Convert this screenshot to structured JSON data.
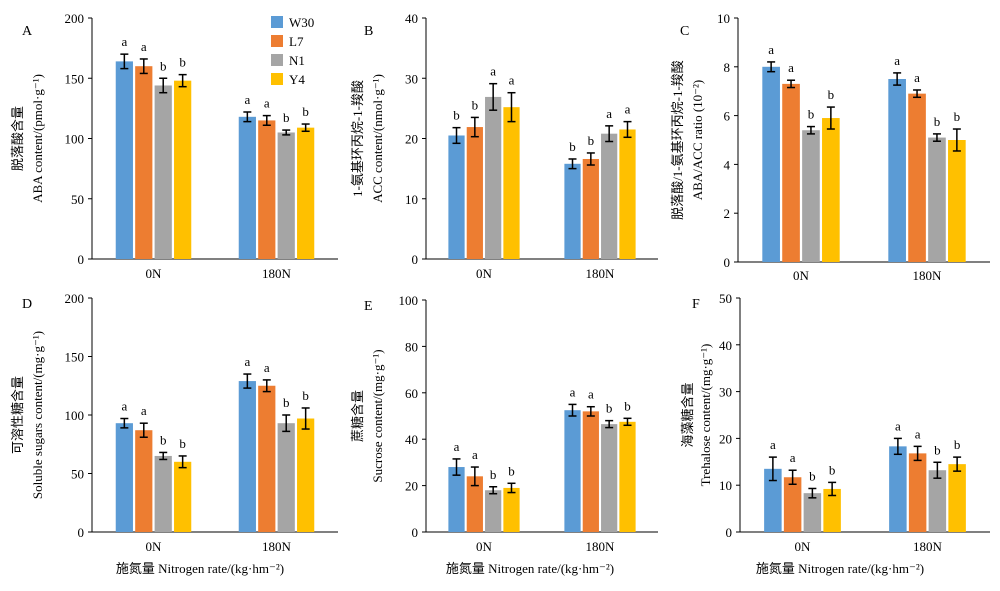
{
  "figure": {
    "series_colors": {
      "W30": "#5b9bd5",
      "L7": "#ed7d31",
      "N1": "#a5a5a5",
      "Y4": "#ffc000"
    },
    "xlabel": "施氮量 Nitrogen rate/(kg·hm⁻²)"
  },
  "chart_data": [
    {
      "panel": "A",
      "type": "bar",
      "categories": [
        "0N",
        "180N"
      ],
      "ylabel_cn": "脱落酸含量",
      "ylabel_en": "ABA content/(pmol·g⁻¹)",
      "xlabel": "",
      "ylim": [
        0,
        200
      ],
      "yticks": [
        0,
        50,
        100,
        150,
        200
      ],
      "legend": "top-center",
      "series": [
        {
          "name": "W30",
          "values": [
            164,
            118
          ],
          "errors": [
            6,
            4
          ],
          "letters": [
            "a",
            "a"
          ]
        },
        {
          "name": "L7",
          "values": [
            160,
            115
          ],
          "errors": [
            6,
            4
          ],
          "letters": [
            "a",
            "a"
          ]
        },
        {
          "name": "N1",
          "values": [
            144,
            105
          ],
          "errors": [
            6,
            2
          ],
          "letters": [
            "b",
            "b"
          ]
        },
        {
          "name": "Y4",
          "values": [
            148,
            109
          ],
          "errors": [
            5,
            3
          ],
          "letters": [
            "b",
            "b"
          ]
        }
      ]
    },
    {
      "panel": "B",
      "type": "bar",
      "categories": [
        "0N",
        "180N"
      ],
      "ylabel_cn": "1-氨基环丙烷-1-羧酸",
      "ylabel_en": "ACC content/(nmol·g⁻¹)",
      "xlabel": "",
      "ylim": [
        0,
        40
      ],
      "yticks": [
        0,
        10,
        20,
        30,
        40
      ],
      "series": [
        {
          "name": "W30",
          "values": [
            20.5,
            15.8
          ],
          "errors": [
            1.3,
            0.8
          ],
          "letters": [
            "b",
            "b"
          ]
        },
        {
          "name": "L7",
          "values": [
            21.9,
            16.6
          ],
          "errors": [
            1.6,
            1.0
          ],
          "letters": [
            "b",
            "b"
          ]
        },
        {
          "name": "N1",
          "values": [
            26.9,
            20.8
          ],
          "errors": [
            2.2,
            1.3
          ],
          "letters": [
            "a",
            "a"
          ]
        },
        {
          "name": "Y4",
          "values": [
            25.2,
            21.5
          ],
          "errors": [
            2.4,
            1.3
          ],
          "letters": [
            "a",
            "a"
          ]
        }
      ]
    },
    {
      "panel": "C",
      "type": "bar",
      "categories": [
        "0N",
        "180N"
      ],
      "ylabel_cn": "脱落酸/1-氨基环丙烷-1-羧酸",
      "ylabel_en": "ABA/ACC ratio (10⁻²)",
      "xlabel": "",
      "ylim": [
        0,
        10
      ],
      "yticks": [
        0,
        2,
        4,
        6,
        8,
        10
      ],
      "series": [
        {
          "name": "W30",
          "values": [
            8.0,
            7.5
          ],
          "errors": [
            0.2,
            0.25
          ],
          "letters": [
            "a",
            "a"
          ]
        },
        {
          "name": "L7",
          "values": [
            7.3,
            6.9
          ],
          "errors": [
            0.15,
            0.15
          ],
          "letters": [
            "a",
            "a"
          ]
        },
        {
          "name": "N1",
          "values": [
            5.4,
            5.1
          ],
          "errors": [
            0.15,
            0.15
          ],
          "letters": [
            "b",
            "b"
          ]
        },
        {
          "name": "Y4",
          "values": [
            5.9,
            5.0
          ],
          "errors": [
            0.45,
            0.45
          ],
          "letters": [
            "b",
            "b"
          ]
        }
      ]
    },
    {
      "panel": "D",
      "type": "bar",
      "categories": [
        "0N",
        "180N"
      ],
      "ylabel_cn": "可溶性糖含量",
      "ylabel_en": "Soluble sugars content/(mg·g⁻¹)",
      "xlabel": "施氮量 Nitrogen rate/(kg·hm⁻²)",
      "ylim": [
        0,
        200
      ],
      "yticks": [
        0,
        50,
        100,
        150,
        200
      ],
      "series": [
        {
          "name": "W30",
          "values": [
            93,
            129
          ],
          "errors": [
            4,
            6
          ],
          "letters": [
            "a",
            "a"
          ]
        },
        {
          "name": "L7",
          "values": [
            87,
            125
          ],
          "errors": [
            6,
            5
          ],
          "letters": [
            "a",
            "a"
          ]
        },
        {
          "name": "N1",
          "values": [
            65,
            93
          ],
          "errors": [
            3,
            7
          ],
          "letters": [
            "b",
            "b"
          ]
        },
        {
          "name": "Y4",
          "values": [
            60,
            97
          ],
          "errors": [
            5,
            9
          ],
          "letters": [
            "b",
            "b"
          ]
        }
      ]
    },
    {
      "panel": "E",
      "type": "bar",
      "categories": [
        "0N",
        "180N"
      ],
      "ylabel_cn": "蔗糖含量",
      "ylabel_en": "Sucrose content/(mg·g⁻¹)",
      "xlabel": "施氮量 Nitrogen rate/(kg·hm⁻²)",
      "ylim": [
        0,
        100
      ],
      "yticks": [
        0,
        20,
        40,
        60,
        80,
        100
      ],
      "series": [
        {
          "name": "W30",
          "values": [
            28,
            52.5
          ],
          "errors": [
            3.5,
            2.5
          ],
          "letters": [
            "a",
            "a"
          ]
        },
        {
          "name": "L7",
          "values": [
            24,
            52
          ],
          "errors": [
            4,
            2
          ],
          "letters": [
            "a",
            "a"
          ]
        },
        {
          "name": "N1",
          "values": [
            18,
            46.5
          ],
          "errors": [
            1.5,
            1.5
          ],
          "letters": [
            "b",
            "b"
          ]
        },
        {
          "name": "Y4",
          "values": [
            19,
            47.5
          ],
          "errors": [
            2,
            1.5
          ],
          "letters": [
            "b",
            "b"
          ]
        }
      ]
    },
    {
      "panel": "F",
      "type": "bar",
      "categories": [
        "0N",
        "180N"
      ],
      "ylabel_cn": "海藻糖含量",
      "ylabel_en": "Trehalose content/(mg·g⁻¹)",
      "xlabel": "施氮量 Nitrogen rate/(kg·hm⁻²)",
      "ylim": [
        0,
        50
      ],
      "yticks": [
        0,
        10,
        20,
        30,
        40,
        50
      ],
      "series": [
        {
          "name": "W30",
          "values": [
            13.5,
            18.3
          ],
          "errors": [
            2.5,
            1.7
          ],
          "letters": [
            "a",
            "a"
          ]
        },
        {
          "name": "L7",
          "values": [
            11.7,
            16.8
          ],
          "errors": [
            1.5,
            1.5
          ],
          "letters": [
            "a",
            "a"
          ]
        },
        {
          "name": "N1",
          "values": [
            8.3,
            13.2
          ],
          "errors": [
            1.0,
            1.7
          ],
          "letters": [
            "b",
            "b"
          ]
        },
        {
          "name": "Y4",
          "values": [
            9.2,
            14.5
          ],
          "errors": [
            1.4,
            1.5
          ],
          "letters": [
            "b",
            "b"
          ]
        }
      ]
    }
  ]
}
